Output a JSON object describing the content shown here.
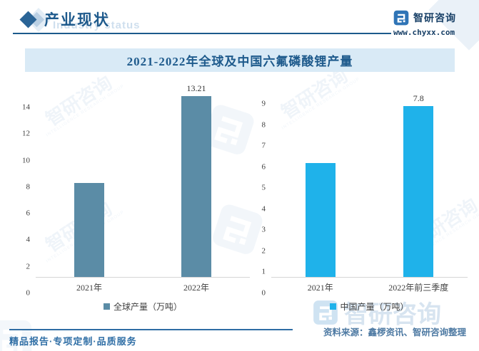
{
  "header": {
    "title": "产业现状",
    "ghost_watermark": "Industry status"
  },
  "logo": {
    "name": "智研咨询",
    "url": "www.chyxx.com"
  },
  "banner": {
    "title": "2021-2022年全球及中国六氟磷酸锂产量"
  },
  "chart_data": [
    {
      "type": "bar",
      "categories": [
        "2021年",
        "2022年"
      ],
      "values": [
        6.8,
        13.21
      ],
      "bar_labels": [
        "",
        "13.21"
      ],
      "legend": "全球产量（万吨）",
      "ylabel": "",
      "xlabel": "",
      "ylim": [
        0,
        14
      ],
      "yticks": [
        0,
        2,
        4,
        6,
        8,
        10,
        12,
        14
      ],
      "grid": false,
      "legend_position": "bottom",
      "bar_color": "#5b8ca6"
    },
    {
      "type": "bar",
      "categories": [
        "2021年",
        "2022年前三季度"
      ],
      "values": [
        5.2,
        7.8
      ],
      "bar_labels": [
        "",
        "7.8"
      ],
      "legend": "中国产量（万吨）",
      "ylabel": "",
      "xlabel": "",
      "ylim": [
        0,
        9
      ],
      "yticks": [
        0,
        1,
        2,
        3,
        4,
        5,
        6,
        7,
        8,
        9
      ],
      "grid": false,
      "legend_position": "bottom",
      "bar_color": "#1fb2ea"
    }
  ],
  "footer": {
    "left": "精品报告·专项定制·品质服务",
    "source": "资料来源：鑫椤资讯、智研咨询整理"
  },
  "watermark": {
    "cn": "智研咨询",
    "en": "INTELLIGENCE RESEARCH GROUP"
  },
  "colors": {
    "accent_dark_blue": "#1e5a8c",
    "banner_bg": "#d9eaf6",
    "global_bar": "#5b8ca6",
    "china_bar": "#1fb2ea",
    "footer_blue": "#2f6ea5"
  }
}
